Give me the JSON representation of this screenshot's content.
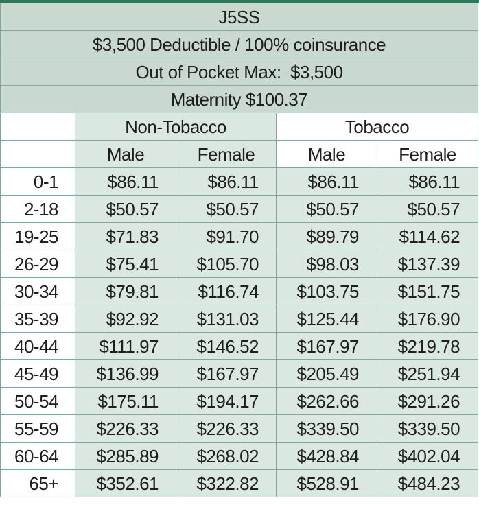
{
  "plan": {
    "name": "J5SS",
    "deductible": "$3,500 Deductible / 100% coinsurance",
    "oop_max": "Out of Pocket Max:  $3,500",
    "maternity": "Maternity $100.37"
  },
  "groups": {
    "non_tobacco": "Non-Tobacco",
    "tobacco": "Tobacco"
  },
  "subheaders": [
    "Male",
    "Female",
    "Male",
    "Female"
  ],
  "rows": [
    {
      "age": "0-1",
      "cells": [
        "$86.11",
        "$86.11",
        "$86.11",
        "$86.11"
      ]
    },
    {
      "age": "2-18",
      "cells": [
        "$50.57",
        "$50.57",
        "$50.57",
        "$50.57"
      ]
    },
    {
      "age": "19-25",
      "cells": [
        "$71.83",
        "$91.70",
        "$89.79",
        "$114.62"
      ]
    },
    {
      "age": "26-29",
      "cells": [
        "$75.41",
        "$105.70",
        "$98.03",
        "$137.39"
      ]
    },
    {
      "age": "30-34",
      "cells": [
        "$79.81",
        "$116.74",
        "$103.75",
        "$151.75"
      ]
    },
    {
      "age": "35-39",
      "cells": [
        "$92.92",
        "$131.03",
        "$125.44",
        "$176.90"
      ]
    },
    {
      "age": "40-44",
      "cells": [
        "$111.97",
        "$146.52",
        "$167.97",
        "$219.78"
      ]
    },
    {
      "age": "45-49",
      "cells": [
        "$136.99",
        "$167.97",
        "$205.49",
        "$251.94"
      ]
    },
    {
      "age": "50-54",
      "cells": [
        "$175.11",
        "$194.17",
        "$262.66",
        "$291.26"
      ]
    },
    {
      "age": "55-59",
      "cells": [
        "$226.33",
        "$226.33",
        "$339.50",
        "$339.50"
      ]
    },
    {
      "age": "60-64",
      "cells": [
        "$285.89",
        "$268.02",
        "$428.84",
        "$402.04"
      ]
    },
    {
      "age": "65+",
      "cells": [
        "$352.61",
        "$322.82",
        "$528.91",
        "$484.23"
      ]
    }
  ],
  "colors": {
    "header_band": "#c9d9d0",
    "cell_fill": "#dbe7e1",
    "grid": "#7fa898",
    "accent": "#2f7a5a"
  }
}
